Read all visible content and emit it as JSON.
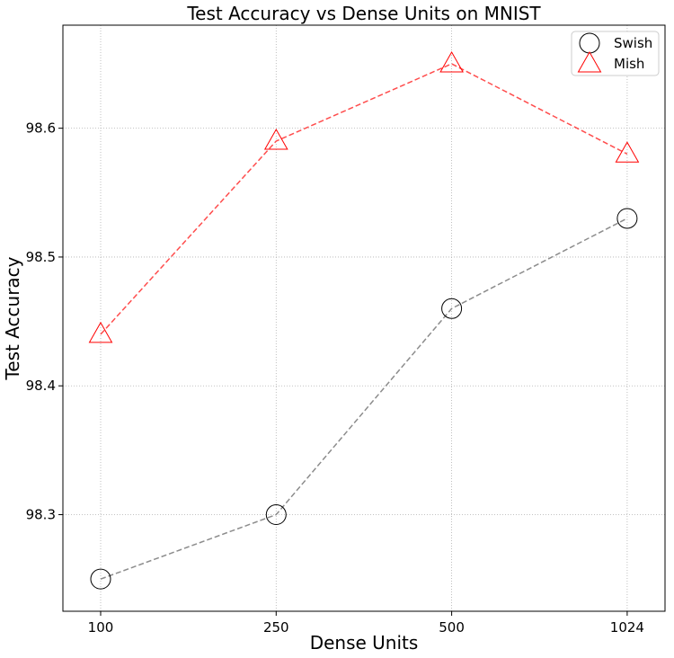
{
  "chart_data": {
    "type": "line",
    "title": "Test Accuracy vs Dense Units on MNIST",
    "xlabel": "Dense Units",
    "ylabel": "Test Accuracy",
    "categories": [
      "100",
      "250",
      "500",
      "1024"
    ],
    "ylim": [
      98.225,
      98.68
    ],
    "yticks": [
      "98.3",
      "98.4",
      "98.5",
      "98.6"
    ],
    "grid": true,
    "legend_position": "top-right",
    "series": [
      {
        "name": "Swish",
        "marker": "circle",
        "color": "#000000",
        "line_color": "#8c8c8c",
        "values": [
          98.25,
          98.3,
          98.46,
          98.53
        ]
      },
      {
        "name": "Mish",
        "marker": "triangle",
        "color": "#ff0000",
        "line_color": "#ff4d4d",
        "values": [
          98.44,
          98.59,
          98.65,
          98.58
        ]
      }
    ]
  }
}
